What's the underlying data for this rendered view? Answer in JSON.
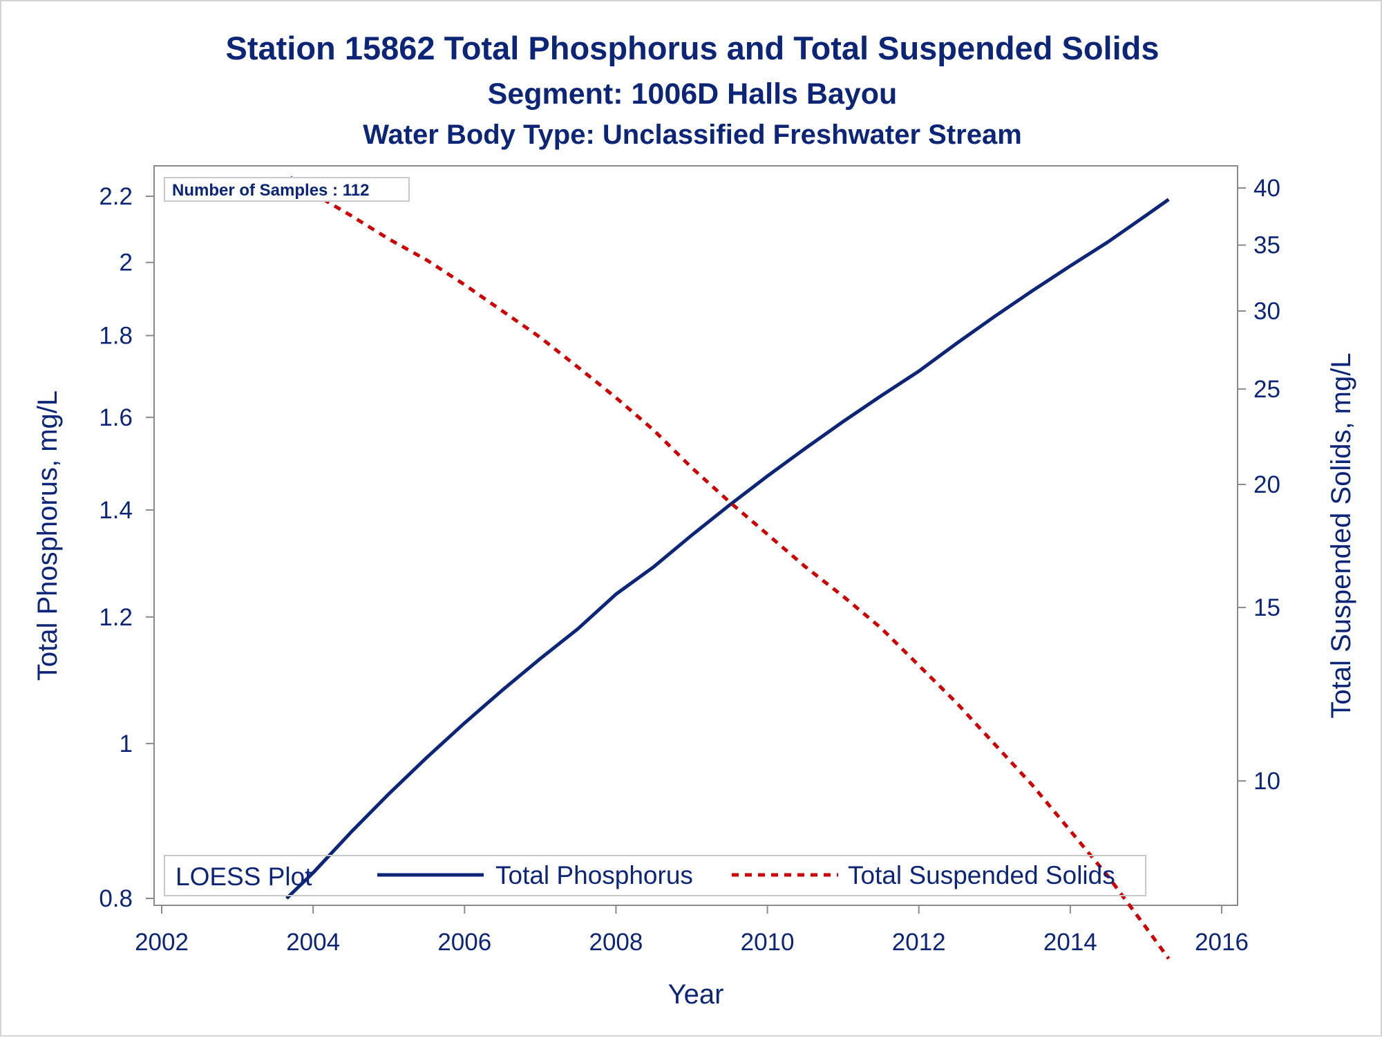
{
  "chart_data": {
    "type": "line",
    "title": "Station 15862  Total Phosphorus and Total Suspended Solids",
    "subtitle": "Segment: 1006D  Halls Bayou",
    "subtitle2": "Water Body Type: Unclassified Freshwater Stream",
    "xlabel": "Year",
    "ylabel": "Total Phosphorus, mg/L",
    "y2label": "Total Suspended Solids, mg/L",
    "xlim": [
      2002,
      2016
    ],
    "x_ticks": [
      "2002",
      "2004",
      "2006",
      "2008",
      "2010",
      "2012",
      "2014",
      "2016"
    ],
    "y_scale": "log",
    "ylim": [
      0.8,
      2.3
    ],
    "y_ticks": [
      "0.8",
      "1",
      "1.2",
      "1.4",
      "1.6",
      "1.8",
      "2",
      "2.2"
    ],
    "y2_scale": "log",
    "y2_ticks": [
      "10",
      "15",
      "20",
      "25",
      "30",
      "35",
      "40"
    ],
    "annotation": "Number of Samples : 112",
    "legend_title": "LOESS Plot",
    "legend_position": "bottom-inside",
    "grid": false,
    "series": [
      {
        "name": "Total Phosphorus",
        "axis": "left",
        "color": "#0c2577",
        "style": "solid",
        "x": [
          2003.65,
          2004.0,
          2004.5,
          2005.0,
          2005.5,
          2006.0,
          2006.5,
          2007.0,
          2007.5,
          2008.0,
          2008.5,
          2009.0,
          2009.5,
          2010.0,
          2010.5,
          2011.0,
          2011.5,
          2012.0,
          2012.5,
          2013.0,
          2013.5,
          2014.0,
          2014.5,
          2015.0,
          2015.3
        ],
        "y": [
          0.8,
          0.83,
          0.88,
          0.93,
          0.98,
          1.03,
          1.08,
          1.13,
          1.18,
          1.24,
          1.29,
          1.35,
          1.41,
          1.47,
          1.53,
          1.59,
          1.65,
          1.71,
          1.78,
          1.85,
          1.92,
          1.99,
          2.06,
          2.14,
          2.19
        ]
      },
      {
        "name": "Total Suspended Solids",
        "axis": "right",
        "color": "#cc0000",
        "style": "dashed",
        "x": [
          2003.7,
          2004.0,
          2004.5,
          2005.0,
          2005.5,
          2006.0,
          2006.5,
          2007.0,
          2007.5,
          2008.0,
          2008.5,
          2009.0,
          2009.5,
          2010.0,
          2010.5,
          2011.0,
          2011.5,
          2012.0,
          2012.5,
          2013.0,
          2013.5,
          2014.0,
          2014.5,
          2015.0,
          2015.3
        ],
        "y": [
          41.0,
          39.5,
          37.5,
          35.5,
          33.8,
          31.9,
          30.0,
          28.2,
          26.3,
          24.5,
          22.7,
          20.8,
          19.2,
          17.8,
          16.5,
          15.4,
          14.3,
          13.1,
          12.0,
          10.9,
          9.9,
          8.9,
          8.0,
          7.1,
          6.6
        ]
      }
    ]
  }
}
